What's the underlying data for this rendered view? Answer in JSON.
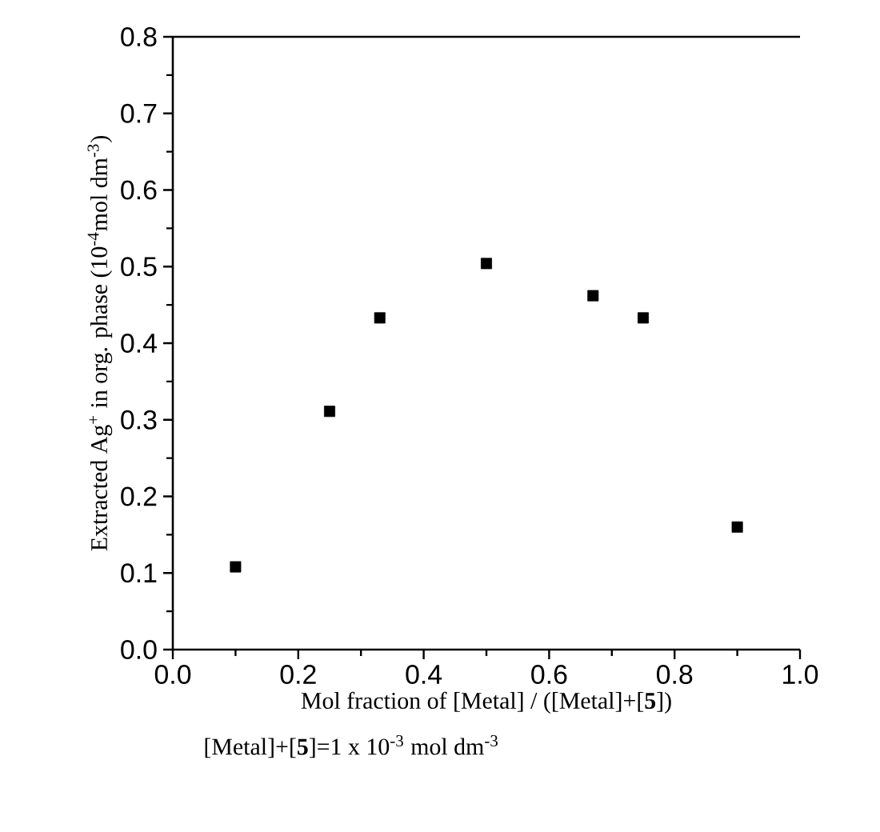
{
  "chart_data": {
    "type": "scatter",
    "xlabel": "Mol fraction of [Metal] / ([Metal]+[**5**])",
    "ylabel": "Extracted Ag$^{+}$ in org. phase (10$^{-4}$mol dm$^{-3}$)",
    "annotations": [
      "[Metal]+[**5**]=1 x 10$^{-3}$ mol dm$^{-3}$"
    ],
    "x": [
      0.1,
      0.25,
      0.33,
      0.5,
      0.67,
      0.75,
      0.9
    ],
    "series": [
      {
        "color": "#000000",
        "values": [
          0.108,
          0.311,
          0.433,
          0.504,
          0.462,
          0.433,
          0.16
        ]
      }
    ],
    "xlim": [
      0.0,
      1.0
    ],
    "ylim": [
      0.0,
      0.8
    ],
    "xticks": [
      {
        "value": 0.0,
        "label": "0.0"
      },
      {
        "value": 0.2,
        "label": "0.2"
      },
      {
        "value": 0.4,
        "label": "0.4"
      },
      {
        "value": 0.6,
        "label": "0.6"
      },
      {
        "value": 0.8,
        "label": "0.8"
      },
      {
        "value": 1.0,
        "label": "1.0"
      }
    ],
    "yticks": [
      {
        "value": 0.0,
        "label": "0.0"
      },
      {
        "value": 0.1,
        "label": "0.1"
      },
      {
        "value": 0.2,
        "label": "0.2"
      },
      {
        "value": 0.3,
        "label": "0.3"
      },
      {
        "value": 0.4,
        "label": "0.4"
      },
      {
        "value": 0.5,
        "label": "0.5"
      },
      {
        "value": 0.6,
        "label": "0.6"
      },
      {
        "value": 0.7,
        "label": "0.7"
      },
      {
        "value": 0.8,
        "label": "0.8"
      }
    ],
    "marker": "square",
    "grid": false
  }
}
